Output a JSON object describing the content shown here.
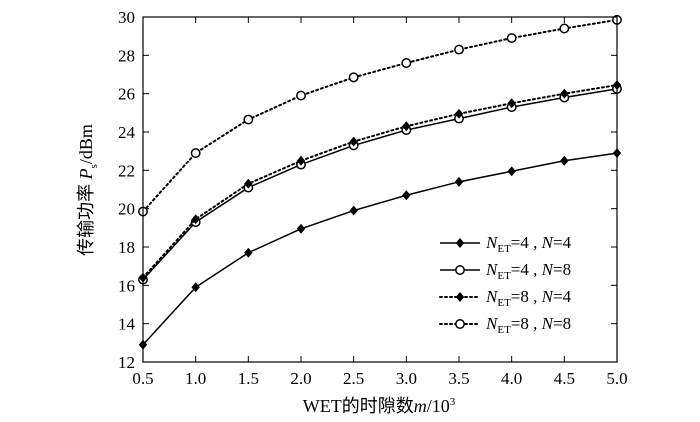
{
  "chart_data": {
    "type": "line",
    "title": "",
    "xlabel": "WET的时隙数m/10³",
    "ylabel": "传输功率 Ps/dBm",
    "xlim": [
      0.5,
      5.0
    ],
    "ylim": [
      12,
      30
    ],
    "x_ticks": [
      "0.5",
      "1.0",
      "1.5",
      "2.0",
      "2.5",
      "3.0",
      "3.5",
      "4.0",
      "4.5",
      "5.0"
    ],
    "y_ticks": [
      "12",
      "14",
      "16",
      "18",
      "20",
      "22",
      "24",
      "26",
      "28",
      "30"
    ],
    "grid": false,
    "legend_position": "bottom-right",
    "x": [
      0.5,
      1.0,
      1.5,
      2.0,
      2.5,
      3.0,
      3.5,
      4.0,
      4.5,
      5.0
    ],
    "series": [
      {
        "name": "NET=4, N=4",
        "legend": {
          "n": "N",
          "sub": "ET",
          "rest": "=4 , ",
          "n2": "N",
          "rest2": "=4"
        },
        "line_style": "solid",
        "marker": "diamond",
        "values": [
          12.9,
          15.9,
          17.7,
          18.95,
          19.9,
          20.7,
          21.4,
          21.95,
          22.5,
          22.9
        ]
      },
      {
        "name": "NET=4, N=8",
        "legend": {
          "n": "N",
          "sub": "ET",
          "rest": "=4 , ",
          "n2": "N",
          "rest2": "=8"
        },
        "line_style": "solid",
        "marker": "circle",
        "values": [
          16.3,
          19.3,
          21.1,
          22.3,
          23.3,
          24.1,
          24.7,
          25.3,
          25.8,
          26.25
        ]
      },
      {
        "name": "NET=8, N=4",
        "legend": {
          "n": "N",
          "sub": "ET",
          "rest": "=8 , ",
          "n2": "N",
          "rest2": "=4"
        },
        "line_style": "dotted",
        "marker": "diamond",
        "values": [
          16.4,
          19.45,
          21.3,
          22.5,
          23.5,
          24.3,
          24.95,
          25.5,
          26.0,
          26.45
        ]
      },
      {
        "name": "NET=8, N=8",
        "legend": {
          "n": "N",
          "sub": "ET",
          "rest": "=8 , ",
          "n2": "N",
          "rest2": "=8"
        },
        "line_style": "dotted",
        "marker": "circle",
        "values": [
          19.85,
          22.9,
          24.65,
          25.9,
          26.85,
          27.6,
          28.3,
          28.9,
          29.4,
          29.85
        ]
      }
    ]
  },
  "axis_labels": {
    "x_prefix": "WET的时隙数",
    "x_var": "m",
    "x_unit": "/10",
    "x_sup": "3",
    "y_prefix": "传输功率 ",
    "y_var": "P",
    "y_sub": "s",
    "y_unit": "/dBm"
  }
}
